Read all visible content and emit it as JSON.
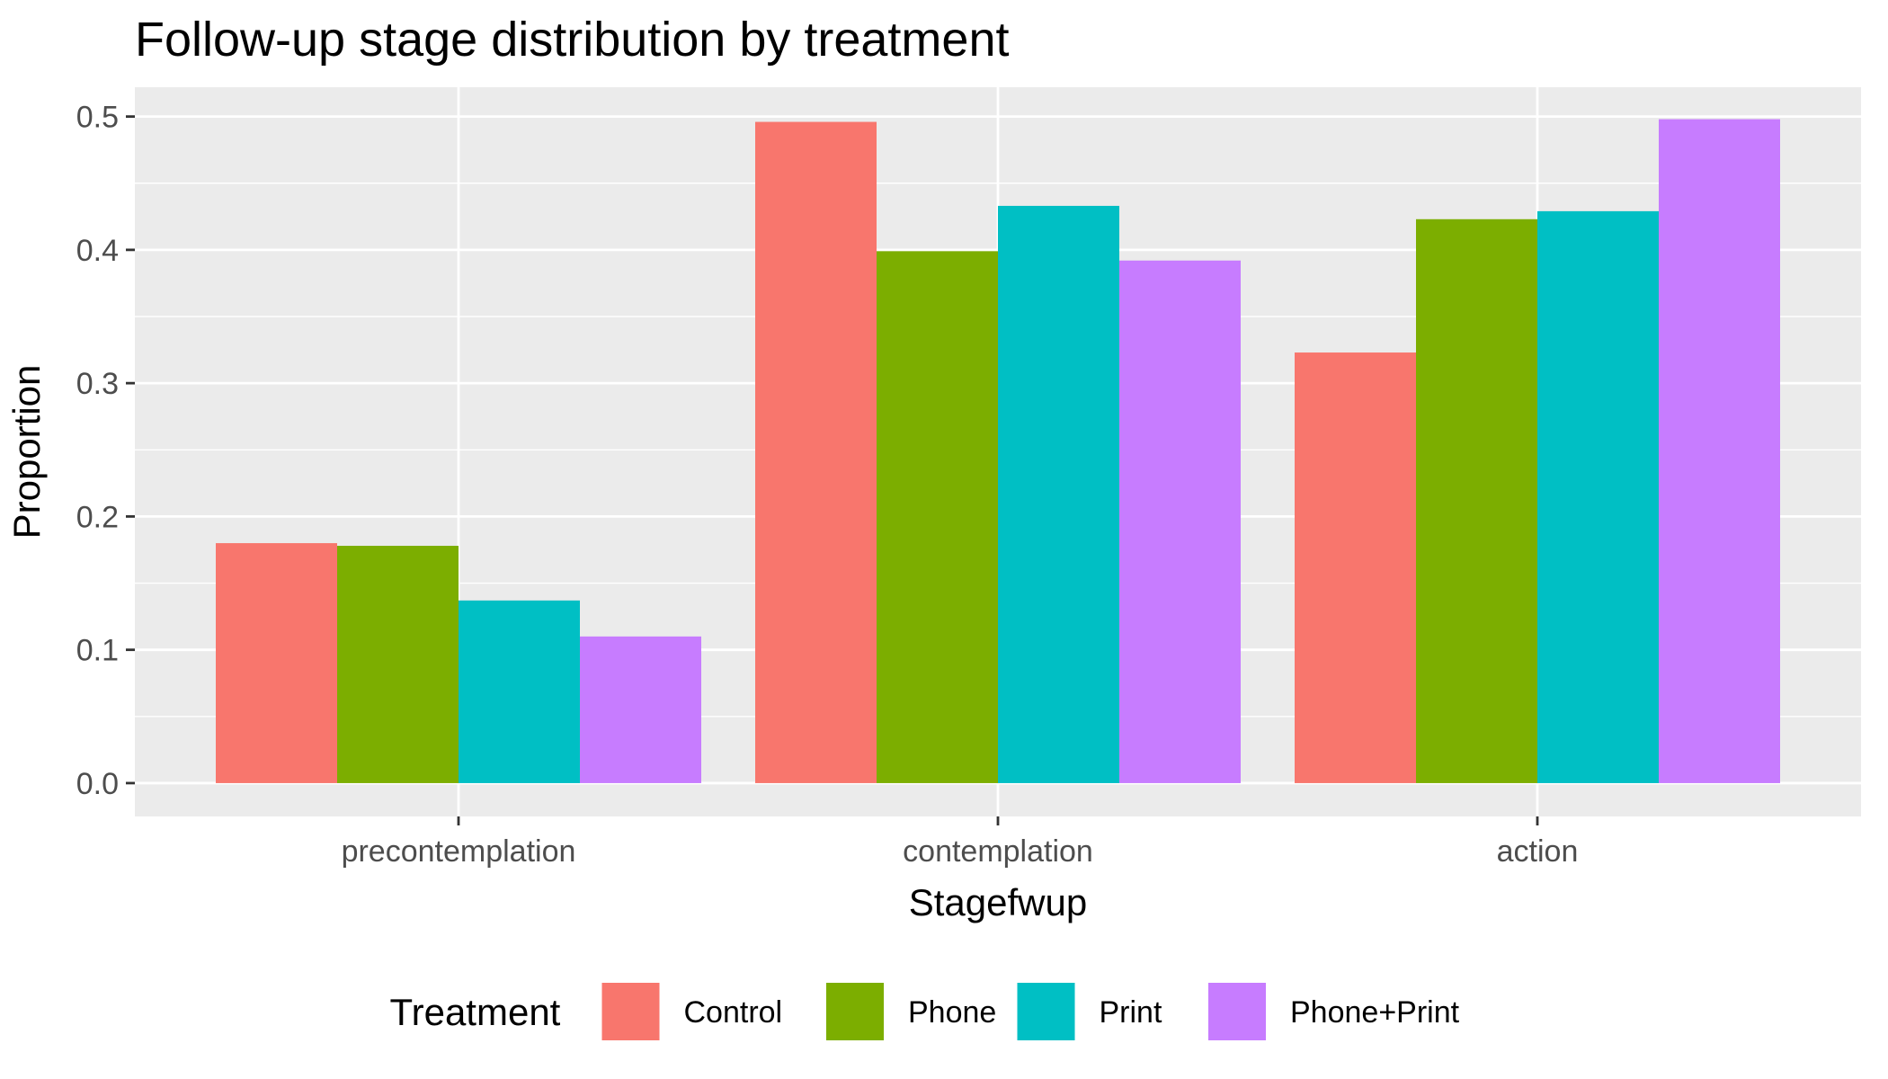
{
  "chart_data": {
    "type": "bar",
    "title": "Follow-up stage distribution by treatment",
    "xlabel": "Stagefwup",
    "ylabel": "Proportion",
    "categories": [
      "precontemplation",
      "contemplation",
      "action"
    ],
    "series": [
      {
        "name": "Control",
        "color": "#F8766D",
        "values": [
          0.18,
          0.496,
          0.323
        ]
      },
      {
        "name": "Phone",
        "color": "#7CAE00",
        "values": [
          0.178,
          0.399,
          0.423
        ]
      },
      {
        "name": "Print",
        "color": "#00BFC4",
        "values": [
          0.137,
          0.433,
          0.429
        ]
      },
      {
        "name": "Phone+Print",
        "color": "#C77CFF",
        "values": [
          0.11,
          0.392,
          0.498
        ]
      }
    ],
    "ylim": [
      -0.025,
      0.522
    ],
    "yticks": [
      0.0,
      0.1,
      0.2,
      0.3,
      0.4,
      0.5
    ],
    "ytick_labels": [
      "0.0",
      "0.1",
      "0.2",
      "0.3",
      "0.4",
      "0.5"
    ],
    "grid": true,
    "panel_background": "#EBEBEB",
    "legend": {
      "title": "Treatment",
      "position": "bottom"
    }
  }
}
